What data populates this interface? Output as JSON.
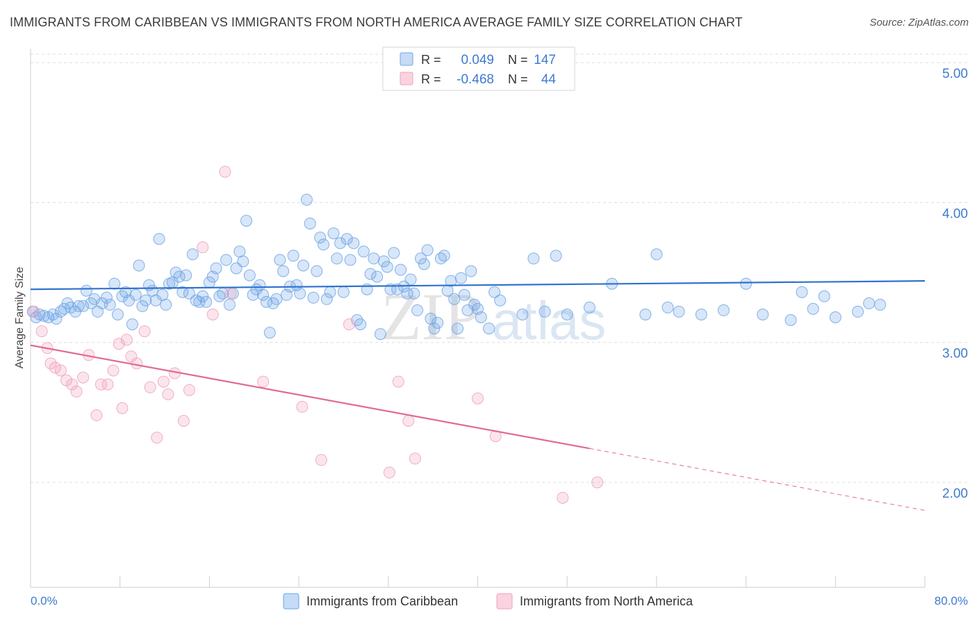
{
  "header": {
    "title": "IMMIGRANTS FROM CARIBBEAN VS IMMIGRANTS FROM NORTH AMERICA AVERAGE FAMILY SIZE CORRELATION CHART",
    "source": "Source: ZipAtlas.com"
  },
  "watermark": {
    "zip": "ZIP",
    "atlas": "atlas"
  },
  "colors": {
    "blue": "#6fa4e6",
    "blue_line": "#2f73cc",
    "pink": "#f0a0bb",
    "pink_line": "#e06a95",
    "grid": "#dcdcdc",
    "tick_label": "#3f7ad1"
  },
  "stats_legend": {
    "rows": [
      {
        "r_label": "R =",
        "r_value": "0.049",
        "n_label": "N =",
        "n_value": "147"
      },
      {
        "r_label": "R =",
        "r_value": "-0.468",
        "n_label": "N =",
        "n_value": "44"
      }
    ]
  },
  "chart_data": {
    "type": "scatter",
    "xlabel": "",
    "ylabel": "Average Family Size",
    "xlim": [
      0,
      80
    ],
    "ylim": [
      1.25,
      5.1
    ],
    "x_tick_labels": [
      "0.0%",
      "80.0%"
    ],
    "y_ticks": [
      {
        "value": 2.0,
        "label": "2.00"
      },
      {
        "value": 3.0,
        "label": "3.00"
      },
      {
        "value": 4.0,
        "label": "4.00"
      },
      {
        "value": 5.0,
        "label": "5.00"
      }
    ],
    "grid": "horizontal dashed",
    "legend_position": "bottom",
    "series": [
      {
        "name": "Immigrants from Caribbean",
        "trend": {
          "x": [
            0,
            80
          ],
          "y": [
            3.38,
            3.44
          ],
          "dashed_from": null
        },
        "points": [
          [
            0.2,
            3.22
          ],
          [
            0.5,
            3.18
          ],
          [
            0.8,
            3.2
          ],
          [
            1.2,
            3.19
          ],
          [
            1.6,
            3.18
          ],
          [
            2.0,
            3.2
          ],
          [
            2.3,
            3.17
          ],
          [
            2.7,
            3.22
          ],
          [
            3.0,
            3.24
          ],
          [
            3.3,
            3.28
          ],
          [
            3.6,
            3.25
          ],
          [
            4.0,
            3.22
          ],
          [
            4.3,
            3.26
          ],
          [
            4.7,
            3.26
          ],
          [
            5.0,
            3.37
          ],
          [
            5.4,
            3.28
          ],
          [
            5.7,
            3.31
          ],
          [
            6.0,
            3.22
          ],
          [
            6.4,
            3.28
          ],
          [
            6.8,
            3.32
          ],
          [
            7.1,
            3.27
          ],
          [
            7.5,
            3.42
          ],
          [
            7.8,
            3.2
          ],
          [
            8.2,
            3.33
          ],
          [
            8.5,
            3.36
          ],
          [
            8.8,
            3.3
          ],
          [
            9.1,
            3.13
          ],
          [
            9.4,
            3.34
          ],
          [
            9.7,
            3.55
          ],
          [
            10.0,
            3.26
          ],
          [
            10.3,
            3.3
          ],
          [
            10.6,
            3.41
          ],
          [
            10.9,
            3.37
          ],
          [
            11.2,
            3.3
          ],
          [
            11.5,
            3.74
          ],
          [
            11.8,
            3.34
          ],
          [
            12.1,
            3.27
          ],
          [
            12.4,
            3.42
          ],
          [
            12.7,
            3.43
          ],
          [
            13.0,
            3.5
          ],
          [
            13.3,
            3.47
          ],
          [
            13.6,
            3.36
          ],
          [
            13.9,
            3.48
          ],
          [
            14.2,
            3.35
          ],
          [
            14.5,
            3.63
          ],
          [
            14.8,
            3.3
          ],
          [
            15.1,
            3.29
          ],
          [
            15.4,
            3.33
          ],
          [
            15.7,
            3.29
          ],
          [
            16.0,
            3.43
          ],
          [
            16.3,
            3.47
          ],
          [
            16.6,
            3.53
          ],
          [
            16.9,
            3.33
          ],
          [
            17.2,
            3.35
          ],
          [
            17.5,
            3.59
          ],
          [
            17.8,
            3.27
          ],
          [
            18.1,
            3.35
          ],
          [
            18.4,
            3.53
          ],
          [
            18.7,
            3.65
          ],
          [
            19.0,
            3.58
          ],
          [
            19.3,
            3.87
          ],
          [
            19.6,
            3.48
          ],
          [
            19.9,
            3.34
          ],
          [
            20.2,
            3.38
          ],
          [
            20.5,
            3.41
          ],
          [
            20.8,
            3.34
          ],
          [
            21.1,
            3.29
          ],
          [
            21.4,
            3.07
          ],
          [
            21.7,
            3.28
          ],
          [
            22.0,
            3.31
          ],
          [
            22.3,
            3.59
          ],
          [
            22.6,
            3.51
          ],
          [
            22.9,
            3.34
          ],
          [
            23.2,
            3.4
          ],
          [
            23.5,
            3.62
          ],
          [
            23.8,
            3.41
          ],
          [
            24.1,
            3.35
          ],
          [
            24.4,
            3.55
          ],
          [
            24.7,
            4.02
          ],
          [
            25.0,
            3.85
          ],
          [
            25.3,
            3.32
          ],
          [
            25.6,
            3.51
          ],
          [
            25.9,
            3.75
          ],
          [
            26.2,
            3.7
          ],
          [
            26.5,
            3.31
          ],
          [
            26.8,
            3.36
          ],
          [
            27.1,
            3.78
          ],
          [
            27.4,
            3.6
          ],
          [
            27.7,
            3.71
          ],
          [
            28.0,
            3.36
          ],
          [
            28.3,
            3.74
          ],
          [
            28.6,
            3.59
          ],
          [
            28.9,
            3.71
          ],
          [
            29.2,
            3.16
          ],
          [
            29.5,
            3.13
          ],
          [
            29.8,
            3.65
          ],
          [
            30.1,
            3.38
          ],
          [
            30.4,
            3.49
          ],
          [
            30.7,
            3.6
          ],
          [
            31.0,
            3.47
          ],
          [
            31.3,
            3.06
          ],
          [
            31.6,
            3.58
          ],
          [
            31.9,
            3.54
          ],
          [
            32.2,
            3.38
          ],
          [
            32.5,
            3.64
          ],
          [
            32.8,
            3.38
          ],
          [
            33.1,
            3.52
          ],
          [
            33.4,
            3.4
          ],
          [
            33.7,
            3.35
          ],
          [
            34.0,
            3.45
          ],
          [
            34.3,
            3.35
          ],
          [
            34.6,
            3.23
          ],
          [
            34.9,
            3.6
          ],
          [
            35.2,
            3.56
          ],
          [
            35.5,
            3.66
          ],
          [
            35.8,
            3.17
          ],
          [
            36.1,
            3.1
          ],
          [
            36.4,
            3.14
          ],
          [
            36.7,
            3.6
          ],
          [
            37.0,
            3.62
          ],
          [
            37.3,
            3.37
          ],
          [
            37.6,
            3.44
          ],
          [
            37.9,
            3.31
          ],
          [
            38.2,
            3.1
          ],
          [
            38.5,
            3.46
          ],
          [
            38.8,
            3.34
          ],
          [
            39.1,
            3.23
          ],
          [
            39.4,
            3.51
          ],
          [
            39.7,
            3.27
          ],
          [
            40.0,
            3.24
          ],
          [
            40.3,
            3.18
          ],
          [
            41.0,
            3.1
          ],
          [
            41.5,
            3.36
          ],
          [
            42.0,
            3.3
          ],
          [
            44.0,
            3.2
          ],
          [
            45.0,
            3.6
          ],
          [
            46.0,
            3.22
          ],
          [
            47.0,
            3.62
          ],
          [
            48.0,
            3.2
          ],
          [
            50.0,
            3.25
          ],
          [
            52.0,
            3.42
          ],
          [
            55.0,
            3.2
          ],
          [
            56.0,
            3.63
          ],
          [
            57.0,
            3.25
          ],
          [
            58.0,
            3.22
          ],
          [
            60.0,
            3.2
          ],
          [
            62.0,
            3.23
          ],
          [
            64.0,
            3.42
          ],
          [
            65.5,
            3.2
          ],
          [
            68.0,
            3.16
          ],
          [
            69.0,
            3.36
          ],
          [
            70.0,
            3.24
          ],
          [
            71.0,
            3.33
          ],
          [
            72.0,
            3.18
          ],
          [
            74.0,
            3.22
          ],
          [
            75.0,
            3.28
          ],
          [
            76.0,
            3.27
          ]
        ]
      },
      {
        "name": "Immigrants from North America",
        "trend": {
          "x": [
            0,
            80
          ],
          "y": [
            2.98,
            1.8
          ],
          "dashed_from": 50
        },
        "points": [
          [
            0.3,
            3.22
          ],
          [
            1.0,
            3.08
          ],
          [
            1.5,
            2.96
          ],
          [
            1.8,
            2.85
          ],
          [
            2.2,
            2.82
          ],
          [
            2.7,
            2.8
          ],
          [
            3.2,
            2.73
          ],
          [
            3.7,
            2.7
          ],
          [
            4.1,
            2.65
          ],
          [
            4.7,
            2.75
          ],
          [
            5.2,
            2.91
          ],
          [
            5.9,
            2.48
          ],
          [
            6.3,
            2.7
          ],
          [
            6.9,
            2.7
          ],
          [
            7.4,
            2.8
          ],
          [
            7.9,
            2.99
          ],
          [
            8.2,
            2.53
          ],
          [
            8.6,
            3.02
          ],
          [
            9.0,
            2.9
          ],
          [
            9.5,
            2.85
          ],
          [
            10.2,
            3.08
          ],
          [
            10.7,
            2.68
          ],
          [
            11.3,
            2.32
          ],
          [
            11.9,
            2.72
          ],
          [
            12.3,
            2.63
          ],
          [
            12.9,
            2.78
          ],
          [
            13.7,
            2.44
          ],
          [
            14.2,
            2.66
          ],
          [
            15.4,
            3.68
          ],
          [
            16.3,
            3.2
          ],
          [
            17.4,
            4.22
          ],
          [
            17.9,
            3.35
          ],
          [
            20.8,
            2.72
          ],
          [
            24.3,
            2.54
          ],
          [
            26.0,
            2.16
          ],
          [
            28.5,
            3.13
          ],
          [
            32.1,
            2.07
          ],
          [
            32.9,
            2.72
          ],
          [
            33.8,
            2.44
          ],
          [
            34.4,
            2.17
          ],
          [
            40.0,
            2.6
          ],
          [
            41.6,
            2.33
          ],
          [
            47.6,
            1.89
          ],
          [
            50.7,
            2.0
          ]
        ]
      }
    ]
  },
  "bottom_legend": [
    {
      "label": "Immigrants from Caribbean"
    },
    {
      "label": "Immigrants from North America"
    }
  ]
}
